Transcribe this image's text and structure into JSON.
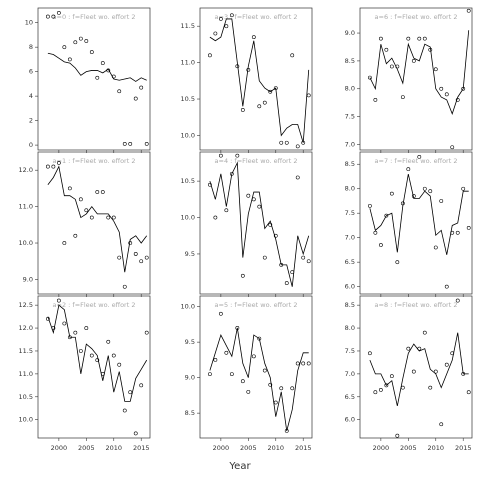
{
  "xlabel": "Year",
  "chart_data": [
    {
      "type": "scatter",
      "title": "a=0 : f=Fleet wo. effort 2",
      "x": [
        1998,
        1999,
        2000,
        2001,
        2002,
        2003,
        2004,
        2005,
        2006,
        2007,
        2008,
        2009,
        2010,
        2011,
        2012,
        2013,
        2014,
        2015,
        2016
      ],
      "values": [
        10.5,
        10.5,
        10.8,
        8.0,
        7.0,
        8.4,
        8.7,
        8.5,
        7.6,
        5.5,
        6.7,
        6.1,
        5.6,
        4.4,
        0.1,
        0.1,
        3.8,
        4.7,
        0.1
      ],
      "line_values": [
        7.5,
        7.4,
        7.1,
        6.8,
        6.7,
        6.3,
        5.7,
        6.0,
        6.1,
        6.1,
        5.9,
        6.2,
        5.4,
        5.3,
        5.4,
        5.5,
        5.2,
        5.5,
        5.3
      ],
      "xlim": [
        1996.2,
        2016.6
      ],
      "xticks": [
        2000,
        2005,
        2010,
        2015
      ],
      "ylim": [
        -0.4,
        11.2
      ],
      "yticks": [
        0,
        2,
        4,
        6,
        8,
        10
      ]
    },
    {
      "type": "scatter",
      "title": "a=1 : f=Fleet wo. effort 2",
      "x": [
        1998,
        1999,
        2000,
        2001,
        2002,
        2003,
        2004,
        2005,
        2006,
        2007,
        2008,
        2009,
        2010,
        2011,
        2012,
        2013,
        2014,
        2015,
        2016
      ],
      "values": [
        12.1,
        12.1,
        12.2,
        10.0,
        11.5,
        10.2,
        11.2,
        10.9,
        10.7,
        11.4,
        11.4,
        10.7,
        10.7,
        9.6,
        8.8,
        10.0,
        9.7,
        9.5,
        9.6
      ],
      "line_values": [
        11.6,
        11.8,
        12.1,
        11.3,
        11.3,
        11.2,
        10.7,
        10.8,
        11.0,
        10.8,
        10.8,
        10.8,
        10.6,
        10.3,
        9.2,
        10.1,
        10.2,
        10.0,
        10.2
      ],
      "xlim": [
        1996.2,
        2016.6
      ],
      "xticks": [
        2000,
        2005,
        2010,
        2015
      ],
      "ylim": [
        8.6,
        12.5
      ],
      "yticks": [
        {
          "value": 9,
          "label": "9.0"
        },
        {
          "value": 10,
          "label": "10.0"
        },
        {
          "value": 11,
          "label": "11.0"
        },
        {
          "value": 12,
          "label": "12.0"
        }
      ]
    },
    {
      "type": "scatter",
      "title": "a=2 : f=Fleet wo. effort 2",
      "x": [
        1998,
        1999,
        2000,
        2001,
        2002,
        2003,
        2004,
        2005,
        2006,
        2007,
        2008,
        2009,
        2010,
        2011,
        2012,
        2013,
        2014,
        2015,
        2016
      ],
      "values": [
        12.2,
        12.0,
        12.6,
        12.1,
        11.8,
        11.9,
        11.5,
        12.0,
        11.4,
        11.3,
        11.0,
        11.7,
        11.4,
        11.2,
        10.2,
        10.6,
        9.7,
        10.75,
        11.9
      ],
      "line_values": [
        12.25,
        11.9,
        12.5,
        12.4,
        11.8,
        11.8,
        11.0,
        11.65,
        11.55,
        11.4,
        10.85,
        11.4,
        10.6,
        11.05,
        10.4,
        10.4,
        10.9,
        11.1,
        11.3
      ],
      "xlim": [
        1996.2,
        2016.6
      ],
      "xticks": [
        2000,
        2005,
        2010,
        2015
      ],
      "ylim": [
        9.6,
        12.7
      ],
      "yticks": [
        {
          "value": 10,
          "label": "10.0"
        },
        {
          "value": 10.5,
          "label": "10.5"
        },
        {
          "value": 11,
          "label": "11.0"
        },
        {
          "value": 11.5,
          "label": "11.5"
        },
        {
          "value": 12,
          "label": "12.0"
        },
        {
          "value": 12.5,
          "label": "12.5"
        }
      ]
    },
    {
      "type": "scatter",
      "title": "a=3 : f=Fleet wo. effort 2",
      "x": [
        1998,
        1999,
        2000,
        2001,
        2002,
        2003,
        2004,
        2005,
        2006,
        2007,
        2008,
        2009,
        2010,
        2011,
        2012,
        2013,
        2014,
        2015,
        2016
      ],
      "values": [
        11.1,
        11.4,
        11.6,
        11.5,
        11.65,
        10.95,
        10.35,
        10.9,
        11.35,
        10.4,
        10.45,
        10.6,
        10.65,
        9.9,
        9.9,
        11.1,
        9.85,
        9.9,
        10.55
      ],
      "line_values": [
        11.35,
        11.3,
        11.35,
        11.6,
        11.6,
        11.0,
        10.4,
        10.95,
        11.3,
        10.75,
        10.65,
        10.6,
        10.65,
        10.0,
        10.1,
        10.15,
        10.15,
        9.9,
        10.9
      ],
      "xlim": [
        1996.2,
        2016.6
      ],
      "xticks": [
        2000,
        2005,
        2010,
        2015
      ],
      "ylim": [
        9.8,
        11.75
      ],
      "yticks": [
        {
          "value": 10,
          "label": "10.0"
        },
        {
          "value": 10.5,
          "label": "10.5"
        },
        {
          "value": 11,
          "label": "11.0"
        },
        {
          "value": 11.5,
          "label": "11.5"
        }
      ]
    },
    {
      "type": "scatter",
      "title": "a=4 : f=Fleet wo. effort 2",
      "x": [
        1998,
        1999,
        2000,
        2001,
        2002,
        2003,
        2004,
        2005,
        2006,
        2007,
        2008,
        2009,
        2010,
        2011,
        2012,
        2013,
        2014,
        2015,
        2016
      ],
      "values": [
        10.45,
        10.0,
        10.85,
        10.1,
        10.6,
        10.85,
        9.2,
        10.3,
        10.25,
        10.15,
        9.45,
        9.9,
        9.75,
        9.35,
        9.1,
        9.25,
        10.55,
        9.45,
        9.4
      ],
      "line_values": [
        10.5,
        10.25,
        10.6,
        10.15,
        10.6,
        10.75,
        9.45,
        10.05,
        10.35,
        10.35,
        9.85,
        9.95,
        9.7,
        9.35,
        9.35,
        9.05,
        9.75,
        9.5,
        9.75
      ],
      "xlim": [
        1996.2,
        2016.6
      ],
      "xticks": [
        2000,
        2005,
        2010,
        2015
      ],
      "ylim": [
        8.95,
        10.9
      ],
      "yticks": [
        {
          "value": 9.5,
          "label": "9.5"
        },
        {
          "value": 10,
          "label": "10.0"
        },
        {
          "value": 10.5,
          "label": "10.5"
        }
      ]
    },
    {
      "type": "scatter",
      "title": "a=5 : f=Fleet wo. effort 2",
      "x": [
        1998,
        1999,
        2000,
        2001,
        2002,
        2003,
        2004,
        2005,
        2006,
        2007,
        2008,
        2009,
        2010,
        2011,
        2012,
        2013,
        2014,
        2015,
        2016
      ],
      "values": [
        9.05,
        9.25,
        9.9,
        9.35,
        9.05,
        9.7,
        8.95,
        8.8,
        9.3,
        9.55,
        9.1,
        8.9,
        8.65,
        8.85,
        8.25,
        8.85,
        9.2,
        9.2,
        9.2
      ],
      "line_values": [
        9.1,
        9.35,
        9.6,
        9.45,
        9.3,
        9.7,
        9.2,
        9.0,
        9.6,
        9.55,
        9.2,
        9.0,
        8.45,
        8.8,
        8.25,
        8.55,
        9.1,
        9.35,
        9.35
      ],
      "xlim": [
        1996.2,
        2016.6
      ],
      "xticks": [
        2000,
        2005,
        2010,
        2015
      ],
      "ylim": [
        8.15,
        10.15
      ],
      "yticks": [
        {
          "value": 8.5,
          "label": "8.5"
        },
        {
          "value": 9,
          "label": "9.0"
        },
        {
          "value": 9.5,
          "label": "9.5"
        },
        {
          "value": 10,
          "label": "10.0"
        }
      ]
    },
    {
      "type": "scatter",
      "title": "a=6 : f=Fleet wo. effort 2",
      "x": [
        1998,
        1999,
        2000,
        2001,
        2002,
        2003,
        2004,
        2005,
        2006,
        2007,
        2008,
        2009,
        2010,
        2011,
        2012,
        2013,
        2014,
        2015,
        2016
      ],
      "values": [
        8.2,
        7.8,
        8.9,
        8.7,
        8.4,
        8.4,
        7.85,
        8.9,
        8.5,
        8.9,
        8.9,
        8.7,
        8.35,
        8.0,
        7.9,
        6.95,
        7.8,
        8.0,
        9.4
      ],
      "line_values": [
        8.2,
        8.0,
        8.8,
        8.45,
        8.55,
        8.35,
        8.1,
        8.8,
        8.55,
        8.5,
        8.8,
        8.75,
        8.0,
        7.85,
        7.8,
        7.55,
        7.85,
        8.0,
        9.05
      ],
      "xlim": [
        1996.2,
        2016.6
      ],
      "xticks": [
        2000,
        2005,
        2010,
        2015
      ],
      "ylim": [
        6.9,
        9.45
      ],
      "yticks": [
        {
          "value": 7,
          "label": "7.0"
        },
        {
          "value": 7.5,
          "label": "7.5"
        },
        {
          "value": 8,
          "label": "8.0"
        },
        {
          "value": 8.5,
          "label": "8.5"
        },
        {
          "value": 9,
          "label": "9.0"
        }
      ]
    },
    {
      "type": "scatter",
      "title": "a=7 : f=Fleet wo. effort 2",
      "x": [
        1998,
        1999,
        2000,
        2001,
        2002,
        2003,
        2004,
        2005,
        2006,
        2007,
        2008,
        2009,
        2010,
        2011,
        2012,
        2013,
        2014,
        2015,
        2016
      ],
      "values": [
        7.65,
        7.1,
        6.85,
        7.45,
        7.9,
        6.5,
        7.7,
        8.4,
        7.85,
        8.65,
        8.0,
        7.95,
        6.8,
        7.75,
        6.0,
        7.1,
        7.1,
        8.0,
        7.2
      ],
      "line_values": [
        7.6,
        7.15,
        7.25,
        7.45,
        7.5,
        6.7,
        7.65,
        8.3,
        7.8,
        7.8,
        7.95,
        7.85,
        7.05,
        7.15,
        6.65,
        7.25,
        7.3,
        7.95,
        7.95
      ],
      "xlim": [
        1996.2,
        2016.6
      ],
      "xticks": [
        2000,
        2005,
        2010,
        2015
      ],
      "ylim": [
        5.85,
        8.75
      ],
      "yticks": [
        {
          "value": 6,
          "label": "6.0"
        },
        {
          "value": 6.5,
          "label": "6.5"
        },
        {
          "value": 7,
          "label": "7.0"
        },
        {
          "value": 7.5,
          "label": "7.5"
        },
        {
          "value": 8,
          "label": "8.0"
        },
        {
          "value": 8.5,
          "label": "8.5"
        }
      ]
    },
    {
      "type": "scatter",
      "title": "a=8 : f=Fleet wo. effort 2",
      "x": [
        1998,
        1999,
        2000,
        2001,
        2002,
        2003,
        2004,
        2005,
        2006,
        2007,
        2008,
        2009,
        2010,
        2011,
        2012,
        2013,
        2014,
        2015,
        2016
      ],
      "values": [
        7.45,
        6.6,
        6.65,
        6.75,
        6.95,
        5.65,
        6.7,
        7.55,
        7.05,
        7.55,
        7.9,
        6.7,
        7.05,
        5.9,
        7.2,
        7.45,
        8.6,
        7.0,
        6.6
      ],
      "line_values": [
        7.3,
        7.0,
        7.0,
        6.75,
        6.85,
        6.3,
        6.9,
        7.45,
        7.65,
        7.5,
        7.55,
        7.1,
        7.0,
        6.7,
        7.0,
        7.3,
        7.9,
        7.0,
        7.0
      ],
      "xlim": [
        1996.2,
        2016.6
      ],
      "xticks": [
        2000,
        2005,
        2010,
        2015
      ],
      "ylim": [
        5.6,
        8.7
      ],
      "yticks": [
        {
          "value": 6,
          "label": "6.0"
        },
        {
          "value": 6.5,
          "label": "6.5"
        },
        {
          "value": 7,
          "label": "7.0"
        },
        {
          "value": 7.5,
          "label": "7.5"
        },
        {
          "value": 8,
          "label": "8.0"
        },
        {
          "value": 8.5,
          "label": "8.5"
        }
      ]
    }
  ]
}
